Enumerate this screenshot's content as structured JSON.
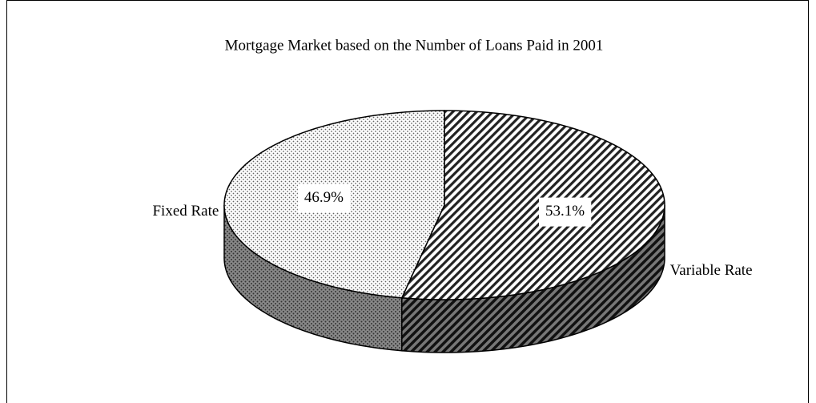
{
  "chart_data": {
    "type": "pie",
    "title": "Mortgage Market based on the Number of Loans Paid in  2001",
    "categories": [
      "Variable Rate",
      "Fixed Rate"
    ],
    "values": [
      53.1,
      46.9
    ],
    "value_labels": [
      "53.1%",
      "46.9%"
    ]
  }
}
